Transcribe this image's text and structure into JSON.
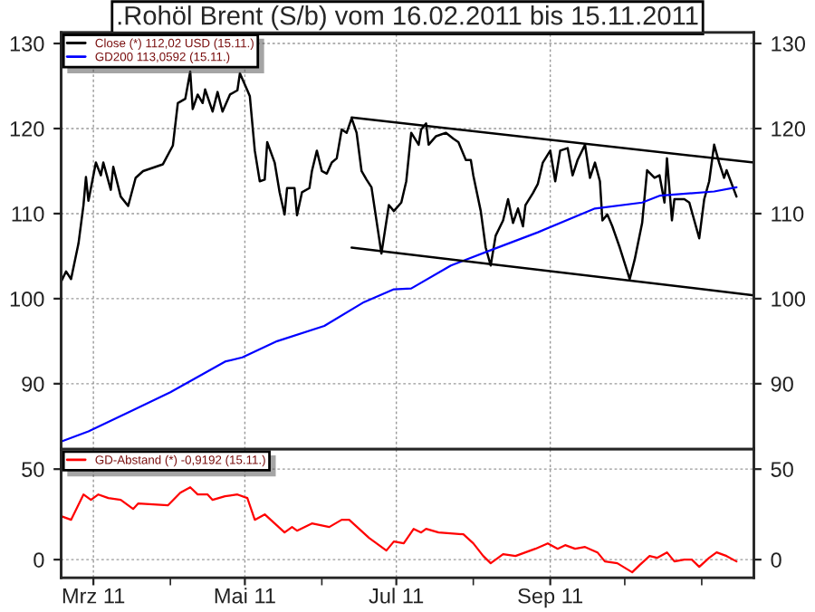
{
  "chart_data": [
    {
      "type": "line",
      "title": ".Rohöl Brent (S/b) vom 16.02.2011 bis 15.11.2011",
      "xlim": [
        "2011-02-16",
        "2011-11-22"
      ],
      "xticks": [
        {
          "value": "2011-03-01",
          "label": null
        },
        {
          "value": "2011-05-01",
          "label": null
        },
        {
          "value": "2011-07-01",
          "label": null
        },
        {
          "value": "2011-09-01",
          "label": null
        }
      ],
      "ylim": [
        82.3,
        131.3
      ],
      "yticks": [
        90,
        100,
        110,
        120,
        130
      ],
      "y2lim": [
        82.3,
        131.3
      ],
      "y2ticks": [
        90,
        100,
        110,
        120,
        130
      ],
      "tick_labels": "y",
      "grid": true,
      "legend": "top left",
      "series": [
        {
          "name": "Close (*) 112,02 USD (15.11.)",
          "color": "#000000",
          "x": [
            "2011-02-16",
            "2011-02-18",
            "2011-02-20",
            "2011-02-23",
            "2011-02-25",
            "2011-02-26",
            "2011-02-27",
            "2011-02-28",
            "2011-03-02",
            "2011-03-04",
            "2011-03-05",
            "2011-03-08",
            "2011-03-09",
            "2011-03-12",
            "2011-03-15",
            "2011-03-18",
            "2011-03-21",
            "2011-03-29",
            "2011-04-02",
            "2011-04-04",
            "2011-04-07",
            "2011-04-09",
            "2011-04-10",
            "2011-04-12",
            "2011-04-14",
            "2011-04-15",
            "2011-04-18",
            "2011-04-20",
            "2011-04-22",
            "2011-04-25",
            "2011-04-28",
            "2011-04-29",
            "2011-05-02",
            "2011-05-03",
            "2011-05-05",
            "2011-05-07",
            "2011-05-09",
            "2011-05-10",
            "2011-05-13",
            "2011-05-15",
            "2011-05-17",
            "2011-05-18",
            "2011-05-21",
            "2011-05-22",
            "2011-05-24",
            "2011-05-27",
            "2011-05-28",
            "2011-05-30",
            "2011-06-01",
            "2011-06-03",
            "2011-06-05",
            "2011-06-07",
            "2011-06-09",
            "2011-06-11",
            "2011-06-13",
            "2011-06-15",
            "2011-06-17",
            "2011-06-19",
            "2011-06-21",
            "2011-06-25",
            "2011-06-28",
            "2011-06-30",
            "2011-07-03",
            "2011-07-05",
            "2011-07-07",
            "2011-07-10",
            "2011-07-11",
            "2011-07-13",
            "2011-07-14",
            "2011-07-17",
            "2011-07-21",
            "2011-07-24",
            "2011-07-26",
            "2011-07-29",
            "2011-07-31",
            "2011-08-01",
            "2011-08-04",
            "2011-08-06",
            "2011-08-08",
            "2011-08-10",
            "2011-08-13",
            "2011-08-15",
            "2011-08-17",
            "2011-08-19",
            "2011-08-21",
            "2011-08-22",
            "2011-08-25",
            "2011-08-27",
            "2011-08-29",
            "2011-09-01",
            "2011-09-03",
            "2011-09-05",
            "2011-09-08",
            "2011-09-10",
            "2011-09-12",
            "2011-09-15",
            "2011-09-17",
            "2011-09-19",
            "2011-09-21",
            "2011-09-22",
            "2011-09-24",
            "2011-09-26",
            "2011-09-29",
            "2011-10-03",
            "2011-10-05",
            "2011-10-08",
            "2011-10-10",
            "2011-10-13",
            "2011-10-15",
            "2011-10-17",
            "2011-10-18",
            "2011-10-20",
            "2011-10-21",
            "2011-10-25",
            "2011-10-27",
            "2011-10-31",
            "2011-11-02",
            "2011-11-04",
            "2011-11-06",
            "2011-11-08",
            "2011-11-10",
            "2011-11-11",
            "2011-11-15"
          ],
          "values": [
            102.0,
            103.2,
            102.3,
            106.5,
            111.0,
            114.3,
            111.5,
            113.0,
            116.0,
            114.5,
            116.0,
            112.8,
            115.5,
            112.0,
            110.9,
            114.2,
            115.0,
            115.8,
            118.0,
            123.0,
            123.5,
            126.7,
            122.3,
            124.0,
            123.0,
            124.6,
            122.0,
            124.3,
            122.0,
            124.0,
            124.5,
            126.5,
            124.5,
            123.8,
            117.4,
            113.8,
            114.0,
            118.4,
            116.0,
            112.5,
            109.9,
            113.0,
            113.0,
            109.8,
            112.5,
            113.0,
            115.0,
            117.4,
            115.0,
            114.7,
            116.0,
            116.5,
            119.9,
            119.5,
            121.2,
            119.5,
            115.0,
            114.0,
            113.1,
            105.3,
            111.0,
            110.3,
            111.3,
            113.8,
            119.5,
            118.1,
            119.9,
            120.6,
            118.1,
            119.1,
            119.5,
            118.8,
            118.4,
            116.3,
            116.3,
            114.5,
            110.3,
            106.0,
            103.9,
            107.4,
            109.2,
            111.7,
            108.9,
            110.6,
            108.5,
            111.0,
            112.4,
            113.5,
            116.0,
            117.4,
            113.8,
            117.4,
            117.7,
            114.5,
            116.3,
            118.1,
            114.2,
            116.0,
            113.8,
            109.2,
            109.9,
            108.5,
            106.0,
            102.3,
            104.6,
            108.9,
            115.1,
            114.2,
            114.5,
            111.3,
            116.5,
            109.2,
            111.7,
            111.7,
            111.3,
            107.1,
            111.7,
            113.8,
            118.1,
            116.0,
            114.2,
            115.1,
            112.0
          ]
        },
        {
          "name": "GD200 113,0592 (15.11.)",
          "color": "#0000ff",
          "x": [
            "2011-02-16",
            "2011-02-27",
            "2011-03-17",
            "2011-04-01",
            "2011-04-23",
            "2011-04-30",
            "2011-05-14",
            "2011-06-02",
            "2011-06-18",
            "2011-06-30",
            "2011-07-07",
            "2011-07-23",
            "2011-08-08",
            "2011-08-27",
            "2011-09-19",
            "2011-10-08",
            "2011-10-15",
            "2011-11-06",
            "2011-11-15"
          ],
          "values": [
            83.2,
            84.4,
            86.9,
            89.0,
            92.6,
            93.1,
            95.0,
            96.8,
            99.6,
            101.1,
            101.2,
            103.9,
            105.7,
            107.8,
            110.6,
            111.3,
            112.1,
            112.6,
            113.1
          ]
        },
        {
          "type": "line",
          "color": "#000000",
          "x": [
            "2011-06-13",
            "2011-11-22"
          ],
          "values": [
            121.3,
            116.0
          ]
        },
        {
          "type": "line",
          "color": "#000000",
          "x": [
            "2011-06-13",
            "2011-11-22"
          ],
          "values": [
            106.0,
            100.4
          ]
        }
      ]
    },
    {
      "type": "line",
      "xlim": [
        "2011-02-16",
        "2011-11-22"
      ],
      "xticks": [
        {
          "value": "2011-03-01",
          "label": "Mrz 11"
        },
        {
          "value": "2011-04-01",
          "label": null
        },
        {
          "value": "2011-05-01",
          "label": "Mai 11"
        },
        {
          "value": "2011-06-01",
          "label": null
        },
        {
          "value": "2011-07-01",
          "label": "Jul 11"
        },
        {
          "value": "2011-08-01",
          "label": null
        },
        {
          "value": "2011-09-01",
          "label": "Sep 11"
        },
        {
          "value": "2011-10-01",
          "label": null
        },
        {
          "value": "2011-11-01",
          "label": null
        }
      ],
      "ylim": [
        -10,
        61
      ],
      "yticks": [
        0,
        50
      ],
      "y2lim": [
        -10,
        61
      ],
      "y2ticks": [
        0,
        50
      ],
      "grid": true,
      "legend": "top left",
      "series": [
        {
          "name": "GD-Abstand (*) -0,9192 (15.11.)",
          "color": "#ff0000",
          "x": [
            "2011-02-16",
            "2011-02-20",
            "2011-02-25",
            "2011-02-28",
            "2011-03-03",
            "2011-03-07",
            "2011-03-12",
            "2011-03-17",
            "2011-03-19",
            "2011-03-31",
            "2011-04-05",
            "2011-04-09",
            "2011-04-12",
            "2011-04-16",
            "2011-04-18",
            "2011-04-23",
            "2011-04-28",
            "2011-05-02",
            "2011-05-05",
            "2011-05-09",
            "2011-05-13",
            "2011-05-17",
            "2011-05-20",
            "2011-05-22",
            "2011-05-28",
            "2011-06-04",
            "2011-06-09",
            "2011-06-12",
            "2011-06-16",
            "2011-06-20",
            "2011-06-27",
            "2011-06-30",
            "2011-07-04",
            "2011-07-08",
            "2011-07-11",
            "2011-07-13",
            "2011-07-18",
            "2011-07-28",
            "2011-08-01",
            "2011-08-05",
            "2011-08-08",
            "2011-08-13",
            "2011-08-18",
            "2011-08-22",
            "2011-08-26",
            "2011-08-31",
            "2011-09-04",
            "2011-09-07",
            "2011-09-11",
            "2011-09-15",
            "2011-09-20",
            "2011-09-23",
            "2011-09-28",
            "2011-10-04",
            "2011-10-07",
            "2011-10-11",
            "2011-10-14",
            "2011-10-18",
            "2011-10-21",
            "2011-10-25",
            "2011-10-28",
            "2011-10-31",
            "2011-11-04",
            "2011-11-07",
            "2011-11-11",
            "2011-11-15"
          ],
          "values": [
            24,
            22,
            36,
            33,
            36,
            34,
            33,
            28,
            31,
            30,
            37,
            40,
            36,
            36,
            33,
            35,
            36,
            34,
            22,
            25,
            20,
            15,
            18,
            16,
            20,
            18,
            22,
            22,
            17,
            12,
            5,
            10,
            9,
            17,
            15,
            17,
            15,
            14,
            9,
            2,
            -2,
            3,
            2,
            4,
            6,
            9,
            6,
            8,
            6,
            7,
            4,
            -1,
            -2,
            -7,
            -3,
            2,
            1,
            4,
            -1,
            0,
            0,
            -4,
            1,
            4,
            2,
            -1
          ]
        }
      ]
    }
  ]
}
